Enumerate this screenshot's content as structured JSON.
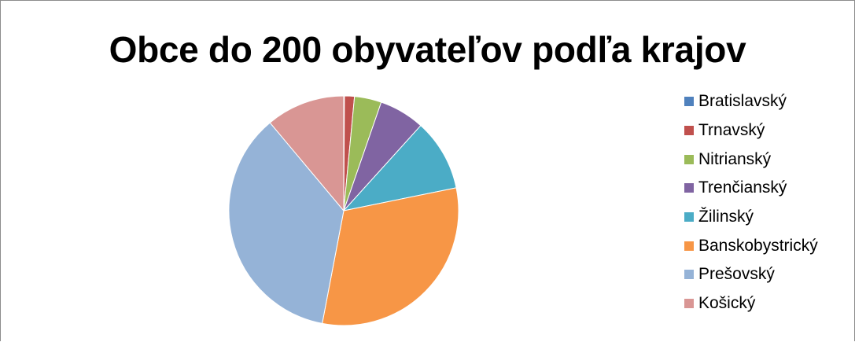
{
  "chart_data": {
    "type": "pie",
    "title": "Obce do 200 obyvateľov podľa krajov",
    "legend_position": "right",
    "categories": [
      "Bratislavský",
      "Trnavský",
      "Nitrianský",
      "Trenčianský",
      "Žilinský",
      "Banskobystrický",
      "Prešovský",
      "Košický"
    ],
    "values": [
      0.1,
      1.4,
      3.8,
      6.4,
      10.1,
      31.2,
      35.9,
      11.1
    ],
    "colors": [
      "#4F81BD",
      "#C0504D",
      "#9BBB59",
      "#8064A2",
      "#4BACC6",
      "#F79646",
      "#95B3D7",
      "#D99694"
    ]
  }
}
